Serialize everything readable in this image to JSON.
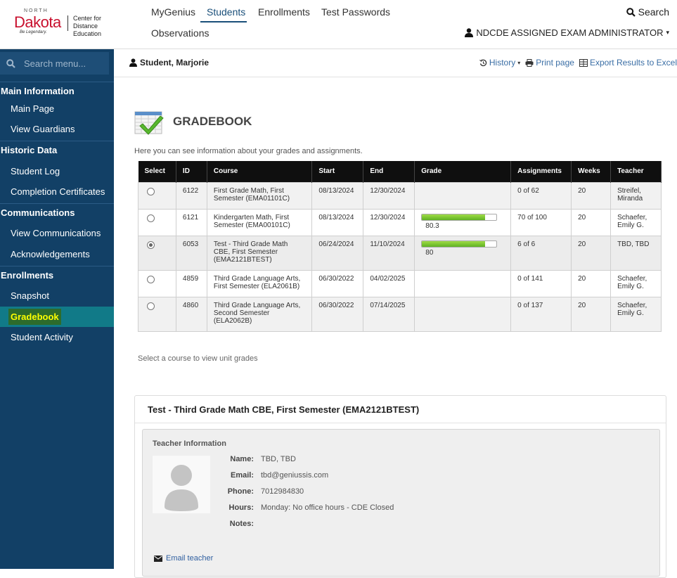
{
  "header": {
    "logo": {
      "north": "NORTH",
      "dakota": "Dakota",
      "tagline": "Be Legendary.",
      "cde": "Center for Distance Education"
    },
    "nav": [
      "MyGenius",
      "Students",
      "Enrollments",
      "Test Passwords",
      "Observations"
    ],
    "active_nav": "Students",
    "search_label": "Search",
    "user_label": "NDCDE ASSIGNED EXAM ADMINISTRATOR"
  },
  "sidebar": {
    "search_placeholder": "Search menu...",
    "sections": [
      {
        "title": "Main Information",
        "items": [
          "Main Page",
          "View Guardians"
        ]
      },
      {
        "title": "Historic Data",
        "items": [
          "Student Log",
          "Completion Certificates"
        ]
      },
      {
        "title": "Communications",
        "items": [
          "View Communications",
          "Acknowledgements"
        ]
      },
      {
        "title": "Enrollments",
        "items": [
          "Snapshot",
          "Gradebook",
          "Student Activity"
        ]
      }
    ],
    "active_item": "Gradebook"
  },
  "subheader": {
    "student": "Student, Marjorie",
    "history": "History",
    "print": "Print page",
    "export": "Export Results to Excel"
  },
  "gradebook": {
    "title": "GRADEBOOK",
    "description": "Here you can see information about your grades and assignments.",
    "columns": [
      "Select",
      "ID",
      "Course",
      "Start",
      "End",
      "Grade",
      "Assignments",
      "Weeks",
      "Teacher"
    ],
    "rows": [
      {
        "selected": false,
        "id": "6122",
        "course": "First Grade Math, First Semester (EMA01101C)",
        "start": "08/13/2024",
        "end": "12/30/2024",
        "grade": null,
        "assignments": "0 of 62",
        "weeks": "20",
        "teacher": "Streifel, Miranda"
      },
      {
        "selected": false,
        "id": "6121",
        "course": "Kindergarten Math, First Semester (EMA00101C)",
        "start": "08/13/2024",
        "end": "12/30/2024",
        "grade": "80.3",
        "assignments": "70 of 100",
        "weeks": "20",
        "teacher": "Schaefer, Emily G."
      },
      {
        "selected": true,
        "id": "6053",
        "course": "Test - Third Grade Math CBE, First Semester (EMA2121BTEST)",
        "start": "06/24/2024",
        "end": "11/10/2024",
        "grade": "80",
        "assignments": "6 of 6",
        "weeks": "20",
        "teacher": "TBD, TBD"
      },
      {
        "selected": false,
        "id": "4859",
        "course": "Third Grade Language Arts, First Semester (ELA2061B)",
        "start": "06/30/2022",
        "end": "04/02/2025",
        "grade": null,
        "assignments": "0 of 141",
        "weeks": "20",
        "teacher": "Schaefer, Emily G."
      },
      {
        "selected": false,
        "id": "4860",
        "course": "Third Grade Language Arts, Second Semester (ELA2062B)",
        "start": "06/30/2022",
        "end": "07/14/2025",
        "grade": null,
        "assignments": "0 of 137",
        "weeks": "20",
        "teacher": "Schaefer, Emily G."
      }
    ],
    "hint": "Select a course to view unit grades"
  },
  "course_panel": {
    "title": "Test - Third Grade Math CBE, First Semester (EMA2121BTEST)",
    "teacher_info_title": "Teacher Information",
    "labels": {
      "name": "Name:",
      "email": "Email:",
      "phone": "Phone:",
      "hours": "Hours:",
      "notes": "Notes:"
    },
    "name": "TBD, TBD",
    "email": "tbd@geniussis.com",
    "phone": "7012984830",
    "hours": "Monday: No office hours - CDE Closed",
    "notes": "",
    "email_teacher": "Email teacher"
  },
  "colors": {
    "sidebar": "#124066",
    "active_row": "#117a88",
    "highlight_text": "#ffff00",
    "link": "#3a6ea5"
  }
}
